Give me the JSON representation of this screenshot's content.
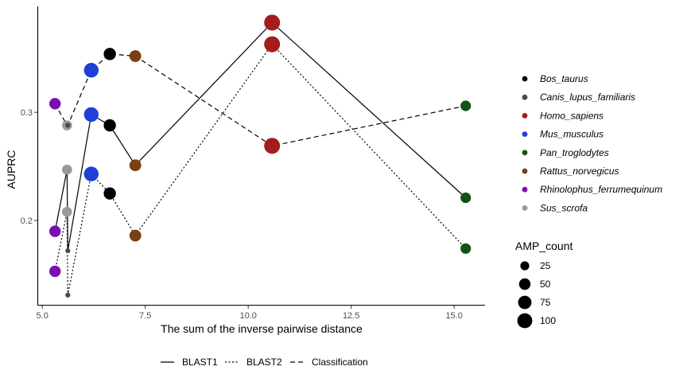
{
  "chart_data": {
    "type": "scatter",
    "xlabel": "The sum of the inverse pairwise distance",
    "ylabel": "AUPRC",
    "xlim": [
      4.9,
      15.75
    ],
    "ylim": [
      0.122,
      0.398
    ],
    "x_ticks": [
      5.0,
      7.5,
      10.0,
      12.5,
      15.0
    ],
    "x_tick_labels": [
      "5.0",
      "7.5",
      "10.0",
      "12.5",
      "15.0"
    ],
    "y_ticks": [
      0.2,
      0.3
    ],
    "y_tick_labels": [
      "0.2",
      "0.3"
    ],
    "grid": false,
    "species": [
      {
        "name": "Bos_taurus",
        "color": "#000000"
      },
      {
        "name": "Canis_lupus_familiaris",
        "color": "#4a4a4a"
      },
      {
        "name": "Homo_sapiens",
        "color": "#a51c1c"
      },
      {
        "name": "Mus_musculus",
        "color": "#1f3fd6"
      },
      {
        "name": "Pan_troglodytes",
        "color": "#145214"
      },
      {
        "name": "Rattus_norvegicus",
        "color": "#7b3f16"
      },
      {
        "name": "Rhinolophus_ferrumequinum",
        "color": "#7a0fb0"
      },
      {
        "name": "Sus_scrofa",
        "color": "#999999"
      }
    ],
    "species_legend_position": "right",
    "size_legend": {
      "title": "AMP_count",
      "values": [
        25,
        50,
        75,
        100
      ]
    },
    "method_legend_position": "bottom",
    "series": [
      {
        "name": "BLAST1",
        "dash": "solid",
        "points": [
          {
            "species": "Rhinolophus_ferrumequinum",
            "x": 5.31,
            "y": 0.19,
            "amp": 50
          },
          {
            "species": "Sus_scrofa",
            "x": 5.6,
            "y": 0.247,
            "amp": 35
          },
          {
            "species": "Canis_lupus_familiaris",
            "x": 5.62,
            "y": 0.172,
            "amp": 3
          },
          {
            "species": "Mus_musculus",
            "x": 6.19,
            "y": 0.298,
            "amp": 95
          },
          {
            "species": "Bos_taurus",
            "x": 6.64,
            "y": 0.288,
            "amp": 60
          },
          {
            "species": "Rattus_norvegicus",
            "x": 7.26,
            "y": 0.251,
            "amp": 55
          },
          {
            "species": "Homo_sapiens",
            "x": 10.58,
            "y": 0.383,
            "amp": 115
          },
          {
            "species": "Pan_troglodytes",
            "x": 15.28,
            "y": 0.221,
            "amp": 40
          }
        ]
      },
      {
        "name": "BLAST2",
        "dash": "dotted",
        "points": [
          {
            "species": "Rhinolophus_ferrumequinum",
            "x": 5.31,
            "y": 0.153,
            "amp": 50
          },
          {
            "species": "Sus_scrofa",
            "x": 5.6,
            "y": 0.208,
            "amp": 35
          },
          {
            "species": "Canis_lupus_familiaris",
            "x": 5.62,
            "y": 0.131,
            "amp": 3
          },
          {
            "species": "Mus_musculus",
            "x": 6.19,
            "y": 0.243,
            "amp": 95
          },
          {
            "species": "Bos_taurus",
            "x": 6.64,
            "y": 0.225,
            "amp": 60
          },
          {
            "species": "Rattus_norvegicus",
            "x": 7.26,
            "y": 0.186,
            "amp": 55
          },
          {
            "species": "Homo_sapiens",
            "x": 10.58,
            "y": 0.363,
            "amp": 115
          },
          {
            "species": "Pan_troglodytes",
            "x": 15.28,
            "y": 0.174,
            "amp": 40
          }
        ]
      },
      {
        "name": "Classification",
        "dash": "dashed",
        "points": [
          {
            "species": "Rhinolophus_ferrumequinum",
            "x": 5.31,
            "y": 0.308,
            "amp": 50
          },
          {
            "species": "Sus_scrofa",
            "x": 5.6,
            "y": 0.288,
            "amp": 35
          },
          {
            "species": "Canis_lupus_familiaris",
            "x": 5.62,
            "y": 0.288,
            "amp": 3
          },
          {
            "species": "Mus_musculus",
            "x": 6.19,
            "y": 0.339,
            "amp": 95
          },
          {
            "species": "Bos_taurus",
            "x": 6.64,
            "y": 0.354,
            "amp": 60
          },
          {
            "species": "Rattus_norvegicus",
            "x": 7.26,
            "y": 0.352,
            "amp": 55
          },
          {
            "species": "Homo_sapiens",
            "x": 10.58,
            "y": 0.269,
            "amp": 115
          },
          {
            "species": "Pan_troglodytes",
            "x": 15.28,
            "y": 0.306,
            "amp": 40
          }
        ]
      }
    ]
  }
}
